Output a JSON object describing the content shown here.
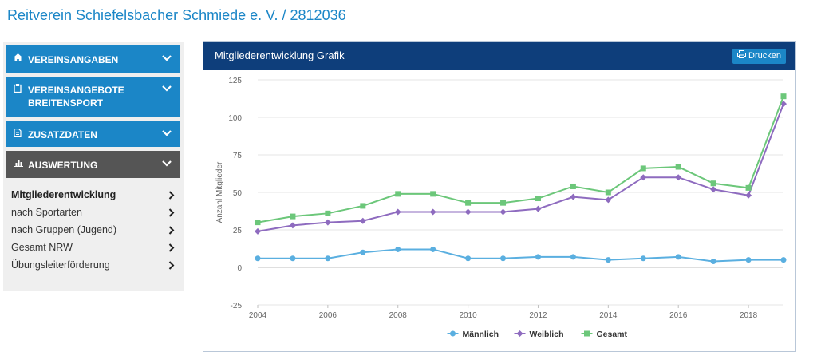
{
  "page": {
    "title": "Reitverein Schiefelsbacher Schmiede e. V. / 2812036"
  },
  "sidebar": {
    "sections": [
      {
        "label": "VEREINSANGABEN",
        "icon": "home-icon",
        "style": "blue"
      },
      {
        "label": "VEREINSANGEBOTE BREITENSPORT",
        "icon": "clipboard-icon",
        "style": "blue"
      },
      {
        "label": "ZUSATZDATEN",
        "icon": "document-icon",
        "style": "blue"
      },
      {
        "label": "AUSWERTUNG",
        "icon": "bar-chart-icon",
        "style": "dark"
      }
    ],
    "submenu": [
      {
        "label": "Mitgliederentwicklung",
        "active": true
      },
      {
        "label": "nach Sportarten",
        "active": false
      },
      {
        "label": "nach Gruppen (Jugend)",
        "active": false
      },
      {
        "label": "Gesamt NRW",
        "active": false
      },
      {
        "label": "Übungsleiterförderung",
        "active": false
      }
    ]
  },
  "panel": {
    "title": "Mitgliederentwicklung Grafik",
    "print_label": "Drucken",
    "print_icon": "printer-icon"
  },
  "colors": {
    "accent": "#1b86c7",
    "panel_header": "#0e3e7b",
    "sidebar_dark": "#555555"
  },
  "chart_data": {
    "type": "line",
    "ylabel": "Anzahl Mitglieder",
    "xlabel": "",
    "ylim": [
      -25,
      125
    ],
    "yticks": [
      -25,
      0,
      25,
      50,
      75,
      100,
      125
    ],
    "xlim": [
      2004,
      2019
    ],
    "xticks": [
      2004,
      2006,
      2008,
      2010,
      2012,
      2014,
      2016,
      2018
    ],
    "x": [
      2004,
      2005,
      2006,
      2007,
      2008,
      2009,
      2010,
      2011,
      2012,
      2013,
      2014,
      2015,
      2016,
      2017,
      2018,
      2019
    ],
    "grid": true,
    "legend": "bottom",
    "series": [
      {
        "name": "Männlich",
        "color": "#5aafe0",
        "marker": "circle",
        "values": [
          6,
          6,
          6,
          10,
          12,
          12,
          6,
          6,
          7,
          7,
          5,
          6,
          7,
          4,
          5,
          5
        ]
      },
      {
        "name": "Weiblich",
        "color": "#8e6bbf",
        "marker": "diamond",
        "values": [
          24,
          28,
          30,
          31,
          37,
          37,
          37,
          37,
          39,
          47,
          45,
          60,
          60,
          52,
          48,
          109
        ]
      },
      {
        "name": "Gesamt",
        "color": "#6cc77a",
        "marker": "square",
        "values": [
          30,
          34,
          36,
          41,
          49,
          49,
          43,
          43,
          46,
          54,
          50,
          66,
          67,
          56,
          53,
          114
        ]
      }
    ]
  }
}
